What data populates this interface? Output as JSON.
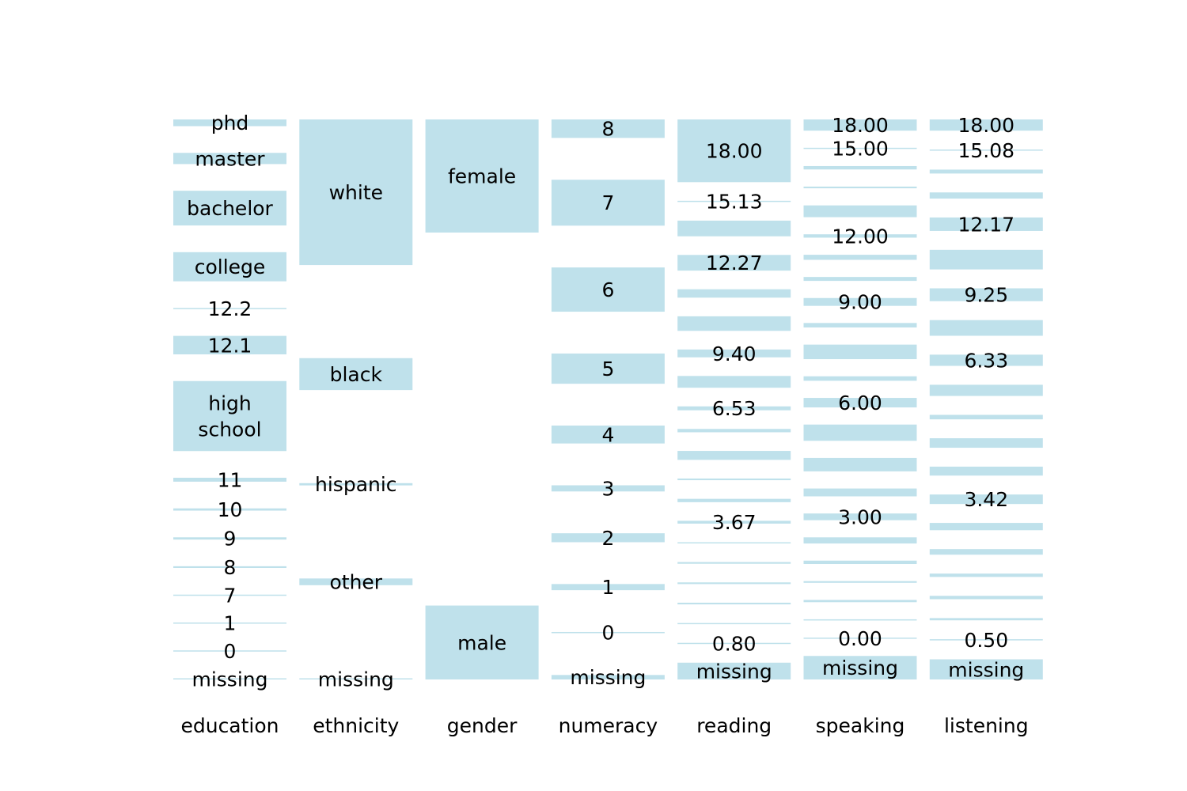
{
  "chart_data": {
    "type": "categorical-parallel-coordinates",
    "bar_color": "#add8e6",
    "grid": false,
    "legend": "none",
    "axes": [
      {
        "name": "education",
        "categories": [
          {
            "label": "phd",
            "share": 0.012,
            "labeled": true
          },
          {
            "label": "master",
            "share": 0.02,
            "labeled": true
          },
          {
            "label": "bachelor",
            "share": 0.062,
            "labeled": true
          },
          {
            "label": "college",
            "share": 0.052,
            "labeled": true
          },
          {
            "label": "12.2",
            "share": 0.002,
            "labeled": true
          },
          {
            "label": "12.1",
            "share": 0.033,
            "labeled": true
          },
          {
            "label": "high school",
            "lines": [
              "high",
              "school"
            ],
            "share": 0.125,
            "labeled": true
          },
          {
            "label": "11",
            "share": 0.007,
            "labeled": true
          },
          {
            "label": "10",
            "share": 0.004,
            "labeled": true
          },
          {
            "label": "9",
            "share": 0.004,
            "labeled": true
          },
          {
            "label": "8",
            "share": 0.003,
            "labeled": true
          },
          {
            "label": "7",
            "share": 0.002,
            "labeled": true
          },
          {
            "label": "1",
            "share": 0.002,
            "labeled": true
          },
          {
            "label": "0",
            "share": 0.001,
            "labeled": true
          },
          {
            "label": "missing",
            "share": 0.002,
            "labeled": true
          }
        ]
      },
      {
        "name": "ethnicity",
        "categories": [
          {
            "label": "white",
            "share": 0.26,
            "labeled": true
          },
          {
            "label": "black",
            "share": 0.057,
            "labeled": true
          },
          {
            "label": "hispanic",
            "share": 0.004,
            "labeled": true
          },
          {
            "label": "other",
            "share": 0.012,
            "labeled": true
          },
          {
            "label": "missing",
            "share": 0.001,
            "labeled": true
          }
        ]
      },
      {
        "name": "gender",
        "categories": [
          {
            "label": "female",
            "share": 0.202,
            "labeled": true
          },
          {
            "label": "male",
            "share": 0.132,
            "labeled": true
          }
        ]
      },
      {
        "name": "numeracy",
        "categories": [
          {
            "label": "8",
            "share": 0.033,
            "labeled": true
          },
          {
            "label": "7",
            "share": 0.082,
            "labeled": true
          },
          {
            "label": "6",
            "share": 0.079,
            "labeled": true
          },
          {
            "label": "5",
            "share": 0.054,
            "labeled": true
          },
          {
            "label": "4",
            "share": 0.032,
            "labeled": true
          },
          {
            "label": "3",
            "share": 0.011,
            "labeled": true
          },
          {
            "label": "2",
            "share": 0.016,
            "labeled": true
          },
          {
            "label": "1",
            "share": 0.011,
            "labeled": true
          },
          {
            "label": "0",
            "share": 0.002,
            "labeled": true
          },
          {
            "label": "missing",
            "share": 0.008,
            "labeled": true
          }
        ]
      },
      {
        "name": "reading",
        "categories": [
          {
            "label": "18.00",
            "share": 0.112,
            "labeled": true
          },
          {
            "label": "15.13",
            "share": 0.0,
            "labeled": true
          },
          {
            "label": "",
            "share": 0.028,
            "labeled": false
          },
          {
            "label": "12.27",
            "share": 0.028,
            "labeled": true
          },
          {
            "label": "",
            "share": 0.015,
            "labeled": false
          },
          {
            "label": "",
            "share": 0.026,
            "labeled": false
          },
          {
            "label": "9.40",
            "share": 0.014,
            "labeled": true
          },
          {
            "label": "",
            "share": 0.021,
            "labeled": false
          },
          {
            "label": "6.53",
            "share": 0.007,
            "labeled": true
          },
          {
            "label": "",
            "share": 0.006,
            "labeled": false
          },
          {
            "label": "",
            "share": 0.016,
            "labeled": false
          },
          {
            "label": "",
            "share": 0.003,
            "labeled": false
          },
          {
            "label": "",
            "share": 0.006,
            "labeled": false
          },
          {
            "label": "3.67",
            "share": 0.005,
            "labeled": true
          },
          {
            "label": "",
            "share": 0.002,
            "labeled": false
          },
          {
            "label": "",
            "share": 0.003,
            "labeled": false
          },
          {
            "label": "",
            "share": 0.003,
            "labeled": false
          },
          {
            "label": "",
            "share": 0.003,
            "labeled": false
          },
          {
            "label": "",
            "share": 0.002,
            "labeled": false
          },
          {
            "label": "0.80",
            "share": 0.002,
            "labeled": true
          },
          {
            "label": "missing",
            "share": 0.03,
            "labeled": true
          }
        ]
      },
      {
        "name": "speaking",
        "categories": [
          {
            "label": "18.00",
            "share": 0.02,
            "labeled": true
          },
          {
            "label": "15.00",
            "share": 0.0,
            "labeled": true
          },
          {
            "label": "",
            "share": 0.006,
            "labeled": false
          },
          {
            "label": "",
            "share": 0.003,
            "labeled": false
          },
          {
            "label": "",
            "share": 0.021,
            "labeled": false
          },
          {
            "label": "12.00",
            "share": 0.006,
            "labeled": true
          },
          {
            "label": "",
            "share": 0.009,
            "labeled": false
          },
          {
            "label": "",
            "share": 0.007,
            "labeled": false
          },
          {
            "label": "9.00",
            "share": 0.014,
            "labeled": true
          },
          {
            "label": "",
            "share": 0.008,
            "labeled": false
          },
          {
            "label": "",
            "share": 0.026,
            "labeled": false
          },
          {
            "label": "",
            "share": 0.008,
            "labeled": false
          },
          {
            "label": "6.00",
            "share": 0.017,
            "labeled": true
          },
          {
            "label": "",
            "share": 0.029,
            "labeled": false
          },
          {
            "label": "",
            "share": 0.024,
            "labeled": false
          },
          {
            "label": "",
            "share": 0.014,
            "labeled": false
          },
          {
            "label": "3.00",
            "share": 0.012,
            "labeled": true
          },
          {
            "label": "",
            "share": 0.011,
            "labeled": false
          },
          {
            "label": "",
            "share": 0.006,
            "labeled": false
          },
          {
            "label": "",
            "share": 0.003,
            "labeled": false
          },
          {
            "label": "",
            "share": 0.004,
            "labeled": false
          },
          {
            "label": "",
            "share": 0.002,
            "labeled": false
          },
          {
            "label": "0.00",
            "share": 0.002,
            "labeled": true
          },
          {
            "label": "missing",
            "share": 0.042,
            "labeled": true
          }
        ]
      },
      {
        "name": "listening",
        "categories": [
          {
            "label": "18.00",
            "share": 0.02,
            "labeled": true
          },
          {
            "label": "15.08",
            "share": 0.0,
            "labeled": true
          },
          {
            "label": "",
            "share": 0.007,
            "labeled": false
          },
          {
            "label": "",
            "share": 0.011,
            "labeled": false
          },
          {
            "label": "12.17",
            "share": 0.024,
            "labeled": true
          },
          {
            "label": "",
            "share": 0.035,
            "labeled": false
          },
          {
            "label": "9.25",
            "share": 0.023,
            "labeled": true
          },
          {
            "label": "",
            "share": 0.028,
            "labeled": false
          },
          {
            "label": "6.33",
            "share": 0.02,
            "labeled": true
          },
          {
            "label": "",
            "share": 0.02,
            "labeled": false
          },
          {
            "label": "",
            "share": 0.008,
            "labeled": false
          },
          {
            "label": "",
            "share": 0.017,
            "labeled": false
          },
          {
            "label": "",
            "share": 0.016,
            "labeled": false
          },
          {
            "label": "3.42",
            "share": 0.017,
            "labeled": true
          },
          {
            "label": "",
            "share": 0.013,
            "labeled": false
          },
          {
            "label": "",
            "share": 0.01,
            "labeled": false
          },
          {
            "label": "",
            "share": 0.006,
            "labeled": false
          },
          {
            "label": "",
            "share": 0.006,
            "labeled": false
          },
          {
            "label": "",
            "share": 0.004,
            "labeled": false
          },
          {
            "label": "0.50",
            "share": 0.001,
            "labeled": true
          },
          {
            "label": "missing",
            "share": 0.036,
            "labeled": true
          }
        ]
      }
    ]
  }
}
